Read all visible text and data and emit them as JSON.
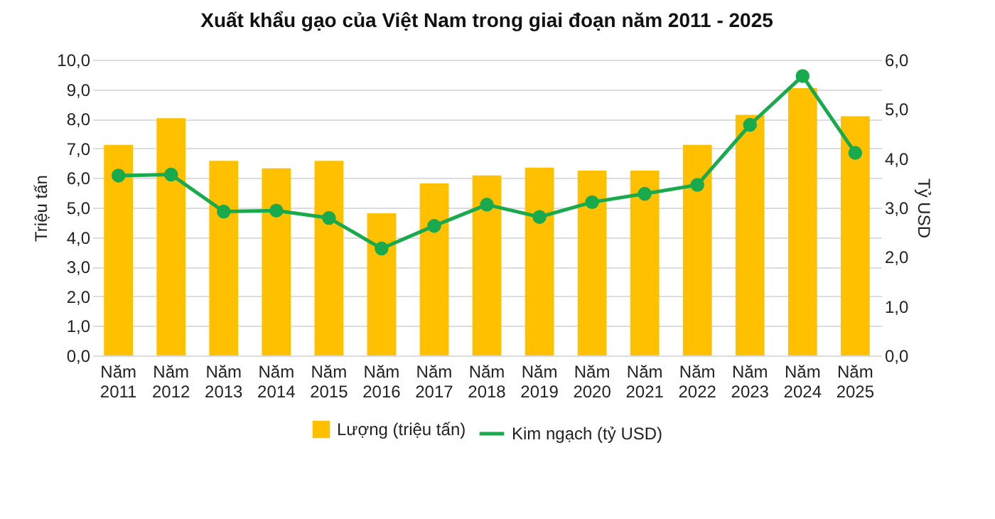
{
  "chart_data": {
    "type": "bar",
    "title": "Xuất khẩu gạo của Việt Nam trong giai đoạn năm 2011 - 2025",
    "categories": [
      "Năm 2011",
      "Năm 2012",
      "Năm 2013",
      "Năm 2014",
      "Năm 2015",
      "Năm 2016",
      "Năm 2017",
      "Năm 2018",
      "Năm 2019",
      "Năm 2020",
      "Năm 2021",
      "Năm 2022",
      "Năm 2023",
      "Năm 2024",
      "Năm 2025"
    ],
    "series": [
      {
        "name": "Lượng (triệu tấn)",
        "color": "#ffc000",
        "values": [
          7.12,
          8.02,
          6.58,
          6.33,
          6.58,
          4.81,
          5.82,
          6.09,
          6.35,
          6.25,
          6.25,
          7.12,
          8.14,
          9.04,
          8.09
        ]
      },
      {
        "name": "Kim ngạch (tỷ USD)",
        "type": "line",
        "axis": "y2",
        "color": "#1aaa4e",
        "values": [
          3.65,
          3.67,
          2.92,
          2.94,
          2.79,
          2.17,
          2.63,
          3.06,
          2.81,
          3.11,
          3.28,
          3.46,
          4.68,
          5.67,
          4.11
        ]
      }
    ],
    "ylabel": "Triệu tấn",
    "y2label": "Tỷ USD",
    "ylim": [
      0,
      10
    ],
    "yticks": [
      {
        "value": 0,
        "label": "0,0"
      },
      {
        "value": 1,
        "label": "1,0"
      },
      {
        "value": 2,
        "label": "2,0"
      },
      {
        "value": 3,
        "label": "3,0"
      },
      {
        "value": 4,
        "label": "4,0"
      },
      {
        "value": 5,
        "label": "5,0"
      },
      {
        "value": 6,
        "label": "6,0"
      },
      {
        "value": 7,
        "label": "7,0"
      },
      {
        "value": 8,
        "label": "8,0"
      },
      {
        "value": 9,
        "label": "9,0"
      },
      {
        "value": 10,
        "label": "10,0"
      }
    ],
    "y2lim": [
      0,
      6
    ],
    "y2ticks": [
      {
        "value": 0,
        "label": "0,0"
      },
      {
        "value": 1,
        "label": "1,0"
      },
      {
        "value": 2,
        "label": "2,0"
      },
      {
        "value": 3,
        "label": "3,0"
      },
      {
        "value": 4,
        "label": "4,0"
      },
      {
        "value": 5,
        "label": "5,0"
      },
      {
        "value": 6,
        "label": "6,0"
      }
    ],
    "grid": "y",
    "legend": "bottom",
    "marker": "circle",
    "line_style": "solid"
  }
}
